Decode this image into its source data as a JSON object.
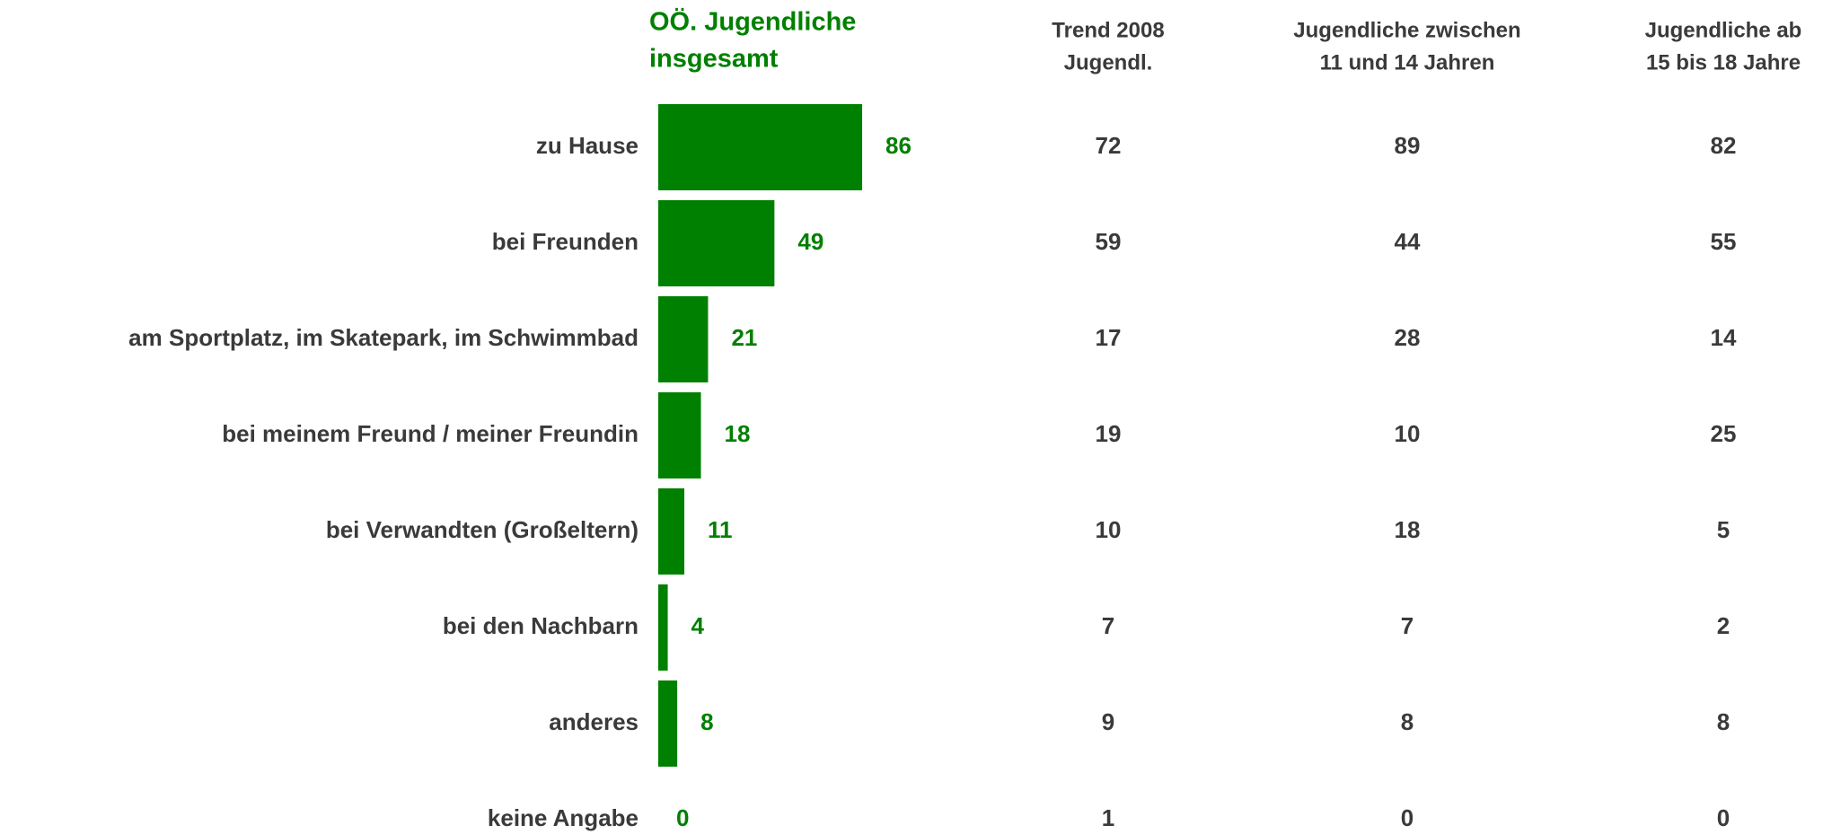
{
  "chart_data": {
    "type": "bar",
    "categories": [
      "zu Hause",
      "bei Freunden",
      "am Sportplatz, im Skatepark, im Schwimmbad",
      "bei meinem Freund / meiner Freundin",
      "bei Verwandten (Großeltern)",
      "bei den Nachbarn",
      "anderes",
      "keine Angabe"
    ],
    "series": [
      {
        "name": [
          "OÖ. Jugendliche",
          "insgesamt"
        ],
        "color": "#008000",
        "values": [
          86,
          49,
          21,
          18,
          11,
          4,
          8,
          0
        ]
      }
    ],
    "columns": [
      {
        "name": [
          "Trend 2008",
          "Jugendl."
        ],
        "values": [
          72,
          59,
          17,
          19,
          10,
          7,
          9,
          1
        ]
      },
      {
        "name": [
          "Jugendliche zwischen",
          "11 und 14 Jahren"
        ],
        "values": [
          89,
          44,
          28,
          10,
          18,
          7,
          8,
          0
        ]
      },
      {
        "name": [
          "Jugendliche ab",
          "15 bis 18 Jahre"
        ],
        "values": [
          82,
          55,
          14,
          25,
          5,
          2,
          8,
          0
        ]
      }
    ]
  }
}
